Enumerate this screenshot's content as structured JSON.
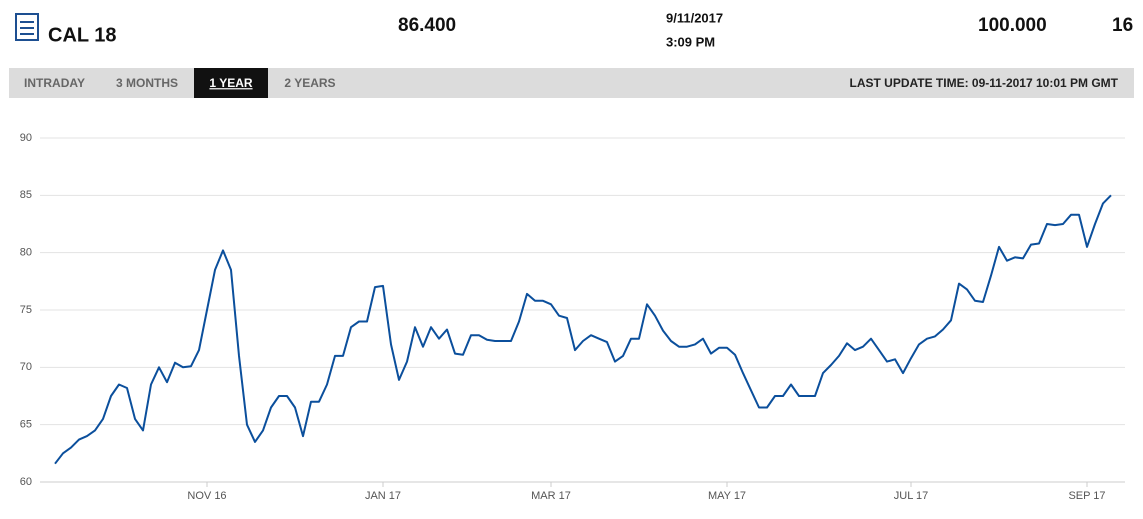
{
  "header": {
    "title": "CAL 18",
    "price": "86.400",
    "date": "9/11/2017",
    "time": "3:09 PM",
    "right_value": "100.000",
    "right_extra": "16"
  },
  "tabs": {
    "items": [
      "INTRADAY",
      "3 MONTHS",
      "1 YEAR",
      "2 YEARS"
    ],
    "active": 2
  },
  "last_update": "LAST UPDATE TIME: 09-11-2017 10:01 PM GMT",
  "chart_data": {
    "type": "line",
    "color": "#0b4f9c",
    "grid": true,
    "ylim": [
      60,
      90
    ],
    "yticks": [
      60,
      65,
      70,
      75,
      80,
      85,
      90
    ],
    "categories": [
      null,
      null,
      null,
      null,
      null,
      null,
      null,
      null,
      null,
      null,
      null,
      null,
      null,
      null,
      null,
      null,
      null,
      null,
      null,
      "NOV 16",
      null,
      null,
      null,
      null,
      null,
      null,
      null,
      null,
      null,
      null,
      null,
      null,
      null,
      null,
      null,
      null,
      null,
      null,
      null,
      null,
      null,
      "JAN 17",
      null,
      null,
      null,
      null,
      null,
      null,
      null,
      null,
      null,
      null,
      null,
      null,
      null,
      null,
      null,
      null,
      null,
      null,
      null,
      null,
      "MAR 17",
      null,
      null,
      null,
      null,
      null,
      null,
      null,
      null,
      null,
      null,
      null,
      null,
      null,
      null,
      null,
      null,
      null,
      null,
      null,
      null,
      null,
      "MAY 17",
      null,
      null,
      null,
      null,
      null,
      null,
      null,
      null,
      null,
      null,
      null,
      null,
      null,
      null,
      null,
      null,
      null,
      null,
      null,
      null,
      null,
      null,
      "JUL 17",
      null,
      null,
      null,
      null,
      null,
      null,
      null,
      null,
      null,
      null,
      null,
      null,
      null,
      null,
      null,
      null,
      null,
      null,
      null,
      null,
      null,
      "SEP 17",
      null,
      null,
      null
    ],
    "values": [
      61.6,
      62.5,
      63.0,
      63.7,
      64.0,
      64.5,
      65.5,
      67.5,
      68.5,
      68.2,
      65.5,
      64.5,
      68.5,
      70.0,
      68.7,
      70.4,
      70.0,
      70.1,
      71.5,
      75.0,
      78.5,
      80.2,
      78.5,
      71.0,
      65.0,
      63.5,
      64.5,
      66.5,
      67.5,
      67.5,
      66.5,
      64.0,
      67.0,
      67.0,
      68.5,
      71.0,
      71.0,
      73.5,
      74.0,
      74.0,
      77.0,
      77.1,
      72.0,
      68.9,
      70.5,
      73.5,
      71.8,
      73.5,
      72.5,
      73.3,
      71.2,
      71.1,
      72.8,
      72.8,
      72.4,
      72.3,
      72.3,
      72.3,
      74.0,
      76.4,
      75.8,
      75.8,
      75.5,
      74.5,
      74.3,
      71.5,
      72.3,
      72.8,
      72.5,
      72.2,
      70.5,
      71.0,
      72.5,
      72.5,
      75.5,
      74.5,
      73.2,
      72.3,
      71.8,
      71.8,
      72.0,
      72.5,
      71.2,
      71.7,
      71.7,
      71.1,
      69.5,
      68.0,
      66.5,
      66.5,
      67.5,
      67.5,
      68.5,
      67.5,
      67.5,
      67.5,
      69.5,
      70.2,
      71.0,
      72.1,
      71.5,
      71.8,
      72.5,
      71.5,
      70.5,
      70.7,
      69.5,
      70.8,
      72.0,
      72.5,
      72.7,
      73.3,
      74.1,
      77.3,
      76.8,
      75.8,
      75.7,
      78.0,
      80.5,
      79.3,
      79.6,
      79.5,
      80.7,
      80.8,
      82.5,
      82.4,
      82.5,
      83.3,
      83.3,
      80.5,
      82.5,
      84.3,
      85.0
    ]
  }
}
